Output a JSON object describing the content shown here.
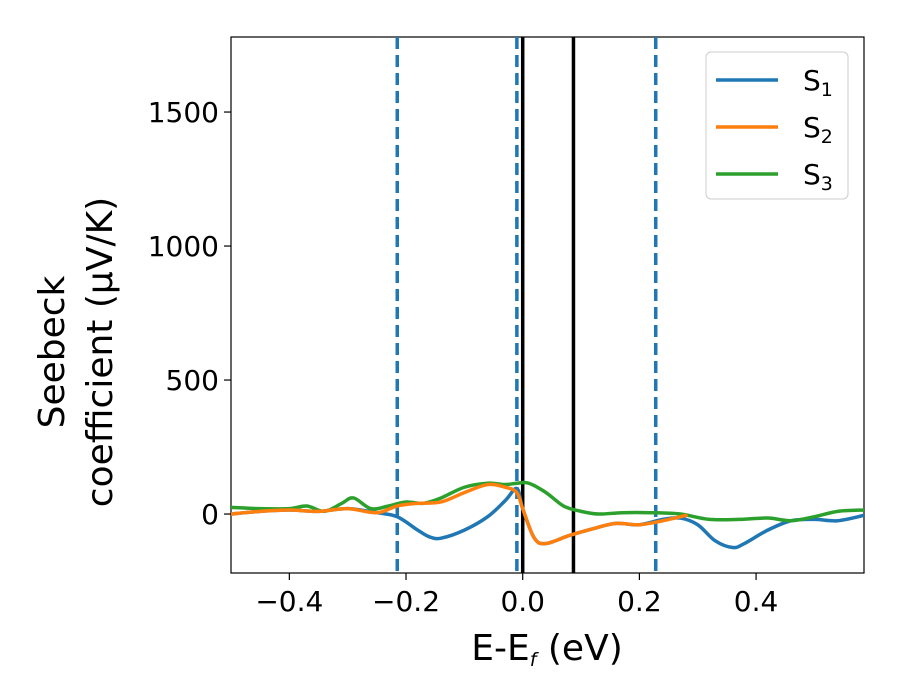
{
  "chart_data": {
    "type": "line",
    "xlabel": {
      "main": "E-E",
      "sub": "f",
      "suffix": " (eV)"
    },
    "ylabel": {
      "line1": "Seebeck",
      "line2": "coefficient  (μV/K)"
    },
    "xlim": [
      -0.5,
      0.585
    ],
    "ylim": [
      -220,
      1780
    ],
    "xticks": [
      -0.4,
      -0.2,
      0.0,
      0.2,
      0.4
    ],
    "xtick_labels": [
      "−0.4",
      "−0.2",
      "0.0",
      "0.2",
      "0.4"
    ],
    "yticks": [
      0,
      500,
      1000,
      1500
    ],
    "ytick_labels": [
      "0",
      "500",
      "1000",
      "1500"
    ],
    "grid": false,
    "legend_position": "top-right",
    "vlines_dashed": [
      -0.215,
      -0.01,
      0.228
    ],
    "vlines_solid": [
      0.0,
      0.087
    ],
    "colors": {
      "S1": "#1f77b4",
      "S2": "#ff7f0e",
      "S3": "#2ca02c",
      "vline_dashed": "#1f77b4",
      "vline_solid": "#000000"
    },
    "series": [
      {
        "name": "S",
        "sub": "1",
        "color": "#1f77b4",
        "x": [
          -0.5,
          -0.45,
          -0.4,
          -0.35,
          -0.3,
          -0.25,
          -0.215,
          -0.18,
          -0.16,
          -0.14,
          -0.1,
          -0.06,
          -0.03,
          -0.01,
          0.0,
          0.02,
          0.04,
          0.08,
          0.12,
          0.16,
          0.2,
          0.24,
          0.27,
          0.3,
          0.33,
          0.36,
          0.38,
          0.42,
          0.46,
          0.5,
          0.54,
          0.585
        ],
        "y": [
          0,
          10,
          15,
          10,
          20,
          5,
          -10,
          -60,
          -85,
          -90,
          -60,
          -10,
          50,
          95,
          20,
          -90,
          -110,
          -80,
          -55,
          -35,
          -40,
          -20,
          -15,
          -40,
          -100,
          -125,
          -110,
          -60,
          -25,
          -20,
          -25,
          -5
        ]
      },
      {
        "name": "S",
        "sub": "2",
        "color": "#ff7f0e",
        "x": [
          -0.5,
          -0.45,
          -0.4,
          -0.35,
          -0.3,
          -0.25,
          -0.215,
          -0.18,
          -0.14,
          -0.1,
          -0.06,
          -0.03,
          -0.01,
          0.0,
          0.02,
          0.04,
          0.08,
          0.12,
          0.16,
          0.2,
          0.24,
          0.28
        ],
        "y": [
          0,
          10,
          15,
          10,
          20,
          5,
          30,
          40,
          45,
          80,
          110,
          100,
          80,
          20,
          -90,
          -110,
          -80,
          -55,
          -35,
          -40,
          -25,
          -5
        ]
      },
      {
        "name": "S",
        "sub": "3",
        "color": "#2ca02c",
        "x": [
          -0.5,
          -0.45,
          -0.4,
          -0.37,
          -0.34,
          -0.31,
          -0.29,
          -0.26,
          -0.23,
          -0.2,
          -0.17,
          -0.14,
          -0.1,
          -0.06,
          -0.03,
          -0.01,
          0.01,
          0.04,
          0.07,
          0.1,
          0.13,
          0.17,
          0.22,
          0.27,
          0.32,
          0.37,
          0.42,
          0.46,
          0.5,
          0.54,
          0.585
        ],
        "y": [
          25,
          20,
          20,
          30,
          10,
          40,
          60,
          20,
          30,
          45,
          40,
          60,
          100,
          115,
          110,
          115,
          115,
          80,
          30,
          10,
          0,
          5,
          5,
          0,
          -20,
          -20,
          -15,
          -25,
          -10,
          10,
          15
        ]
      }
    ]
  }
}
